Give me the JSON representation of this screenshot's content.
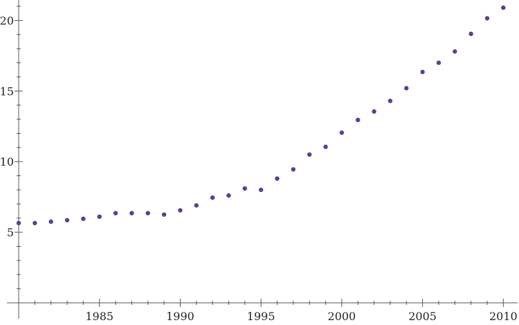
{
  "chart_data": {
    "type": "scatter",
    "title": "",
    "xlabel": "",
    "ylabel": "",
    "xlim": [
      1980,
      2010.5
    ],
    "ylim": [
      0,
      21.2
    ],
    "x_ticks": [
      1985,
      1990,
      1995,
      2000,
      2005,
      2010
    ],
    "y_ticks": [
      5,
      10,
      15,
      20
    ],
    "x_minor_step": 1,
    "y_minor_step": 1,
    "grid": false,
    "marker_color": "#4b4696",
    "series": [
      {
        "x": [
          1980,
          1981,
          1982,
          1983,
          1984,
          1985,
          1986,
          1987,
          1988,
          1989,
          1990,
          1991,
          1992,
          1993,
          1994,
          1995,
          1996,
          1997,
          1998,
          1999,
          2000,
          2001,
          2002,
          2003,
          2004,
          2005,
          2006,
          2007,
          2008,
          2009,
          2010
        ],
        "y": [
          5.65,
          5.65,
          5.75,
          5.85,
          5.95,
          6.1,
          6.35,
          6.35,
          6.35,
          6.25,
          6.55,
          6.9,
          7.45,
          7.6,
          8.1,
          8.0,
          8.8,
          9.45,
          10.5,
          11.05,
          12.05,
          12.95,
          13.55,
          14.3,
          15.2,
          16.35,
          17.0,
          17.8,
          19.05,
          20.15,
          20.9
        ]
      }
    ]
  }
}
